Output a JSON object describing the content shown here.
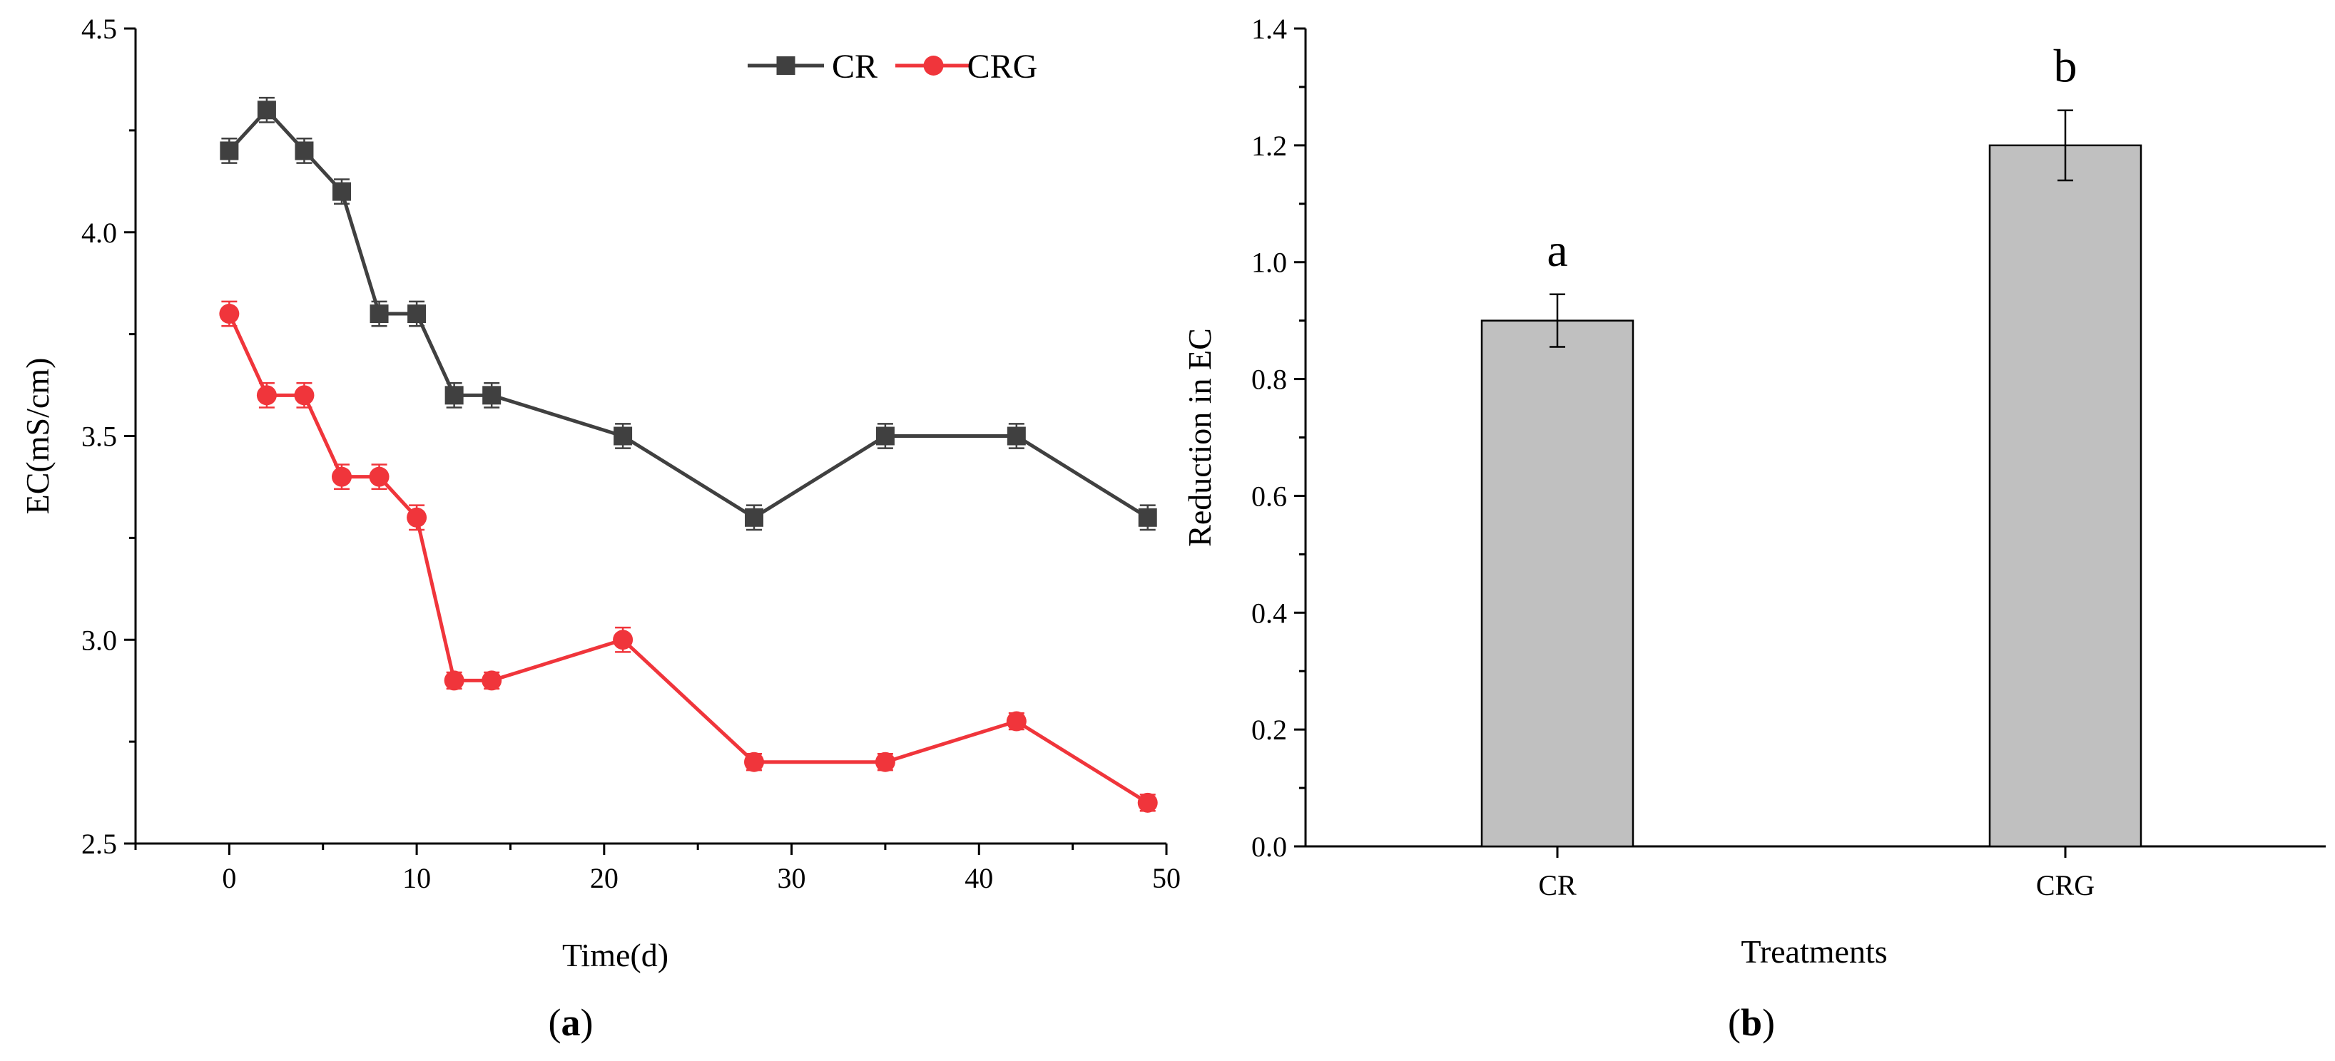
{
  "chart_data": [
    {
      "panel": "(a)",
      "type": "line",
      "xlabel": "Time(d)",
      "ylabel": "EC(mS/cm)",
      "xlim": [
        -5,
        50
      ],
      "ylim": [
        2.5,
        4.5
      ],
      "xticks": [
        0,
        10,
        20,
        30,
        40,
        50
      ],
      "xtick_labels": [
        "0",
        "10",
        "20",
        "30",
        "40",
        "50"
      ],
      "yticks": [
        2.5,
        3.0,
        3.5,
        4.0,
        4.5
      ],
      "ytick_labels": [
        "2.5",
        "3.0",
        "3.5",
        "4.0",
        "4.5"
      ],
      "legend": "top-right",
      "grid": false,
      "x": [
        0,
        2,
        4,
        6,
        8,
        10,
        12,
        14,
        21,
        28,
        35,
        42,
        49
      ],
      "series": [
        {
          "name": "CR",
          "color": "#404040",
          "marker": "square",
          "values": [
            4.2,
            4.3,
            4.2,
            4.1,
            3.8,
            3.8,
            3.6,
            3.6,
            3.5,
            3.3,
            3.5,
            3.5,
            3.3
          ],
          "errors": [
            0.03,
            0.03,
            0.03,
            0.03,
            0.03,
            0.03,
            0.03,
            0.03,
            0.03,
            0.03,
            0.03,
            0.03,
            0.03
          ]
        },
        {
          "name": "CRG",
          "color": "#f0353b",
          "marker": "circle",
          "values": [
            3.8,
            3.6,
            3.6,
            3.4,
            3.4,
            3.3,
            2.9,
            2.9,
            3.0,
            2.7,
            2.7,
            2.8,
            2.6
          ],
          "errors": [
            0.03,
            0.03,
            0.03,
            0.03,
            0.03,
            0.03,
            0.02,
            0.02,
            0.03,
            0.02,
            0.02,
            0.02,
            0.02
          ]
        }
      ]
    },
    {
      "panel": "(b)",
      "type": "bar",
      "xlabel": "Treatments",
      "ylabel": "Reduction in EC",
      "ylim": [
        0.0,
        1.4
      ],
      "yticks": [
        0.0,
        0.2,
        0.4,
        0.6,
        0.8,
        1.0,
        1.2,
        1.4
      ],
      "ytick_labels": [
        "0.0",
        "0.2",
        "0.4",
        "0.6",
        "0.8",
        "1.0",
        "1.2",
        "1.4"
      ],
      "grid": false,
      "categories": [
        "CR",
        "CRG"
      ],
      "values": [
        0.9,
        1.2
      ],
      "errors": [
        0.045,
        0.06
      ],
      "significance": [
        "a",
        "b"
      ],
      "bar_color": "#c0c0c0"
    }
  ]
}
